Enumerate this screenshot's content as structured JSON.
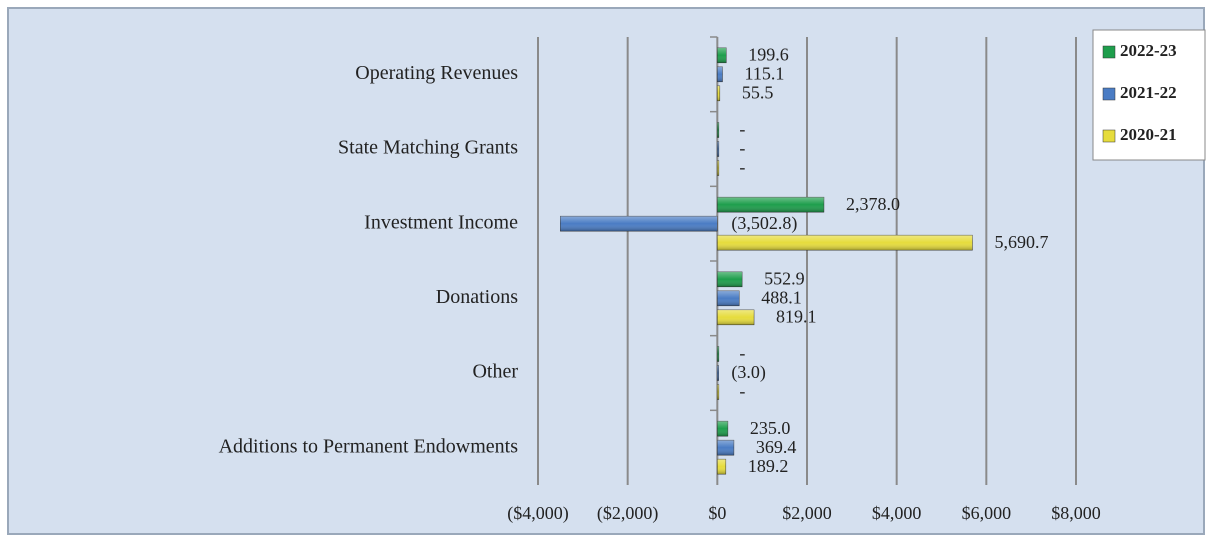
{
  "chart_data": {
    "type": "bar",
    "orientation": "horizontal",
    "categories": [
      "Operating Revenues",
      "State Matching Grants",
      "Investment Income",
      "Donations",
      "Other",
      "Additions to Permanent Endowments"
    ],
    "series": [
      {
        "name": "2022-23",
        "color": "#1e9e4c",
        "values": [
          199.6,
          0,
          2378.0,
          552.9,
          0,
          235.0
        ],
        "value_labels": [
          "199.6",
          "-",
          "2,378.0",
          "552.9",
          "-",
          "235.0"
        ]
      },
      {
        "name": "2021-22",
        "color": "#4a7cc4",
        "values": [
          115.1,
          0,
          -3502.8,
          488.1,
          -3.0,
          369.4
        ],
        "value_labels": [
          "115.1",
          "-",
          "(3,502.8)",
          "488.1",
          "(3.0)",
          "369.4"
        ]
      },
      {
        "name": "2020-21",
        "color": "#e6dc3c",
        "values": [
          55.5,
          0,
          5690.7,
          819.1,
          0,
          189.2
        ],
        "value_labels": [
          "55.5",
          "-",
          "5,690.7",
          "819.1",
          "-",
          "189.2"
        ]
      }
    ],
    "xlim": [
      -4000,
      8000
    ],
    "xticks": [
      {
        "value": -4000,
        "label": "($4,000)"
      },
      {
        "value": -2000,
        "label": "($2,000)"
      },
      {
        "value": 0,
        "label": "$0"
      },
      {
        "value": 2000,
        "label": "$2,000"
      },
      {
        "value": 4000,
        "label": "$4,000"
      },
      {
        "value": 6000,
        "label": "$6,000"
      },
      {
        "value": 8000,
        "label": "$8,000"
      }
    ],
    "grid": true,
    "legend": "top-right"
  }
}
